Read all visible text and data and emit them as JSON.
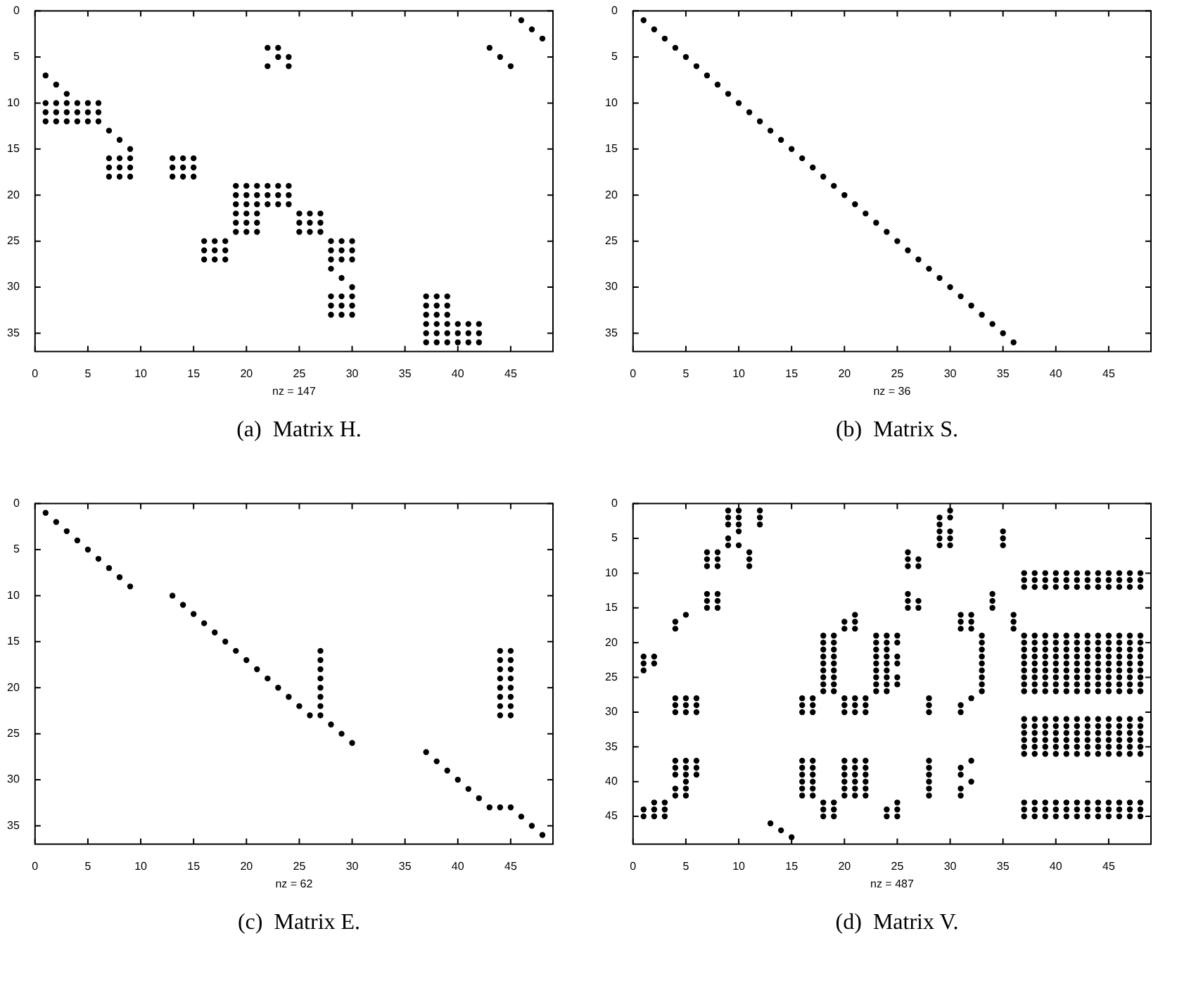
{
  "chart_data": [
    {
      "type": "scatter",
      "title": "(a)  Matrix H.",
      "xlabel": "nz = 147",
      "color": "#000000",
      "marker": "circle",
      "xlim": [
        0,
        49
      ],
      "ylim": [
        37,
        0
      ],
      "xticks": [
        0,
        5,
        10,
        15,
        20,
        25,
        30,
        35,
        40,
        45
      ],
      "yticks": [
        0,
        5,
        10,
        15,
        20,
        25,
        30,
        35
      ],
      "series": [
        {
          "x": [
            1,
            2,
            3
          ],
          "values": [
            7,
            8,
            9
          ]
        },
        {
          "x": [
            1,
            2,
            3,
            4,
            5,
            6,
            1,
            2,
            3,
            4,
            5,
            6,
            1,
            2,
            3,
            4,
            5,
            6
          ],
          "values": [
            10,
            10,
            10,
            10,
            10,
            10,
            11,
            11,
            11,
            11,
            11,
            11,
            12,
            12,
            12,
            12,
            12,
            12
          ]
        },
        {
          "x": [
            7,
            8,
            9
          ],
          "values": [
            13,
            14,
            15
          ]
        },
        {
          "x": [
            7,
            8,
            9,
            7,
            8,
            9,
            7,
            8,
            9
          ],
          "values": [
            16,
            16,
            16,
            17,
            17,
            17,
            18,
            18,
            18
          ]
        },
        {
          "x": [
            13,
            14,
            15,
            13,
            14,
            15,
            13,
            14,
            15
          ],
          "values": [
            16,
            16,
            16,
            17,
            17,
            17,
            18,
            18,
            18
          ]
        },
        {
          "x": [
            19,
            20,
            21,
            22,
            23,
            24,
            19,
            20,
            21,
            22,
            23,
            24,
            19,
            20,
            21,
            22,
            23,
            24
          ],
          "values": [
            19,
            19,
            19,
            19,
            19,
            19,
            20,
            20,
            20,
            20,
            20,
            20,
            21,
            21,
            21,
            21,
            21,
            21
          ]
        },
        {
          "x": [
            19,
            20,
            21,
            19,
            20,
            21,
            19,
            20,
            21
          ],
          "values": [
            22,
            22,
            22,
            23,
            23,
            23,
            24,
            24,
            24
          ]
        },
        {
          "x": [
            25,
            26,
            27,
            25,
            26,
            27,
            25,
            26,
            27
          ],
          "values": [
            22,
            22,
            22,
            23,
            23,
            23,
            24,
            24,
            24
          ]
        },
        {
          "x": [
            16,
            17,
            18,
            16,
            17,
            18,
            16,
            17,
            18
          ],
          "values": [
            25,
            25,
            25,
            26,
            26,
            26,
            27,
            27,
            27
          ]
        },
        {
          "x": [
            28,
            29,
            30,
            28,
            29,
            30,
            28,
            29,
            30
          ],
          "values": [
            25,
            25,
            25,
            26,
            26,
            26,
            27,
            27,
            27
          ]
        },
        {
          "x": [
            28,
            29,
            30
          ],
          "values": [
            28,
            29,
            30
          ]
        },
        {
          "x": [
            28,
            29,
            30,
            28,
            29,
            30,
            28,
            29,
            30
          ],
          "values": [
            31,
            31,
            31,
            32,
            32,
            32,
            33,
            33,
            33
          ]
        },
        {
          "x": [
            37,
            38,
            39,
            37,
            38,
            39,
            37,
            38,
            39
          ],
          "values": [
            31,
            31,
            31,
            32,
            32,
            32,
            33,
            33,
            33
          ]
        },
        {
          "x": [
            37,
            38,
            39,
            40,
            41,
            42,
            37,
            38,
            39,
            40,
            41,
            42,
            37,
            38,
            39,
            40,
            41,
            42
          ],
          "values": [
            34,
            34,
            34,
            34,
            34,
            34,
            35,
            35,
            35,
            35,
            35,
            35,
            36,
            36,
            36,
            36,
            36,
            36
          ]
        },
        {
          "x": [
            22,
            23,
            23,
            24,
            22,
            24
          ],
          "values": [
            4,
            4,
            5,
            5,
            6,
            6
          ]
        },
        {
          "x": [
            43,
            44,
            45
          ],
          "values": [
            4,
            5,
            6
          ]
        },
        {
          "x": [
            46,
            47,
            48
          ],
          "values": [
            1,
            2,
            3
          ]
        }
      ]
    },
    {
      "type": "scatter",
      "title": "(b)  Matrix S.",
      "xlabel": "nz = 36",
      "color": "#000000",
      "marker": "circle",
      "xlim": [
        0,
        49
      ],
      "ylim": [
        37,
        0
      ],
      "xticks": [
        0,
        5,
        10,
        15,
        20,
        25,
        30,
        35,
        40,
        45
      ],
      "yticks": [
        0,
        5,
        10,
        15,
        20,
        25,
        30,
        35
      ],
      "series": [
        {
          "x": [
            1,
            2,
            3,
            4,
            5,
            6,
            7,
            8,
            9,
            10,
            11,
            12,
            13,
            14,
            15,
            16,
            17,
            18,
            19,
            20,
            21,
            22,
            23,
            24,
            25,
            26,
            27,
            28,
            29,
            30,
            31,
            32,
            33,
            34,
            35,
            36
          ],
          "values": [
            1,
            2,
            3,
            4,
            5,
            6,
            7,
            8,
            9,
            10,
            11,
            12,
            13,
            14,
            15,
            16,
            17,
            18,
            19,
            20,
            21,
            22,
            23,
            24,
            25,
            26,
            27,
            28,
            29,
            30,
            31,
            32,
            33,
            34,
            35,
            36
          ]
        }
      ]
    },
    {
      "type": "scatter",
      "title": "(c)  Matrix E.",
      "xlabel": "nz = 62",
      "color": "#000000",
      "marker": "circle",
      "xlim": [
        0,
        49
      ],
      "ylim": [
        37,
        0
      ],
      "xticks": [
        0,
        5,
        10,
        15,
        20,
        25,
        30,
        35,
        40,
        45
      ],
      "yticks": [
        0,
        5,
        10,
        15,
        20,
        25,
        30,
        35
      ],
      "series": [
        {
          "x": [
            1,
            2,
            3,
            4,
            5,
            6,
            7,
            8,
            9
          ],
          "values": [
            1,
            2,
            3,
            4,
            5,
            6,
            7,
            8,
            9
          ]
        },
        {
          "x": [
            13,
            14,
            15,
            16,
            17,
            18,
            19,
            20,
            21,
            22,
            23,
            24,
            25,
            26
          ],
          "values": [
            10,
            11,
            12,
            13,
            14,
            15,
            16,
            17,
            18,
            19,
            20,
            21,
            22,
            23
          ]
        },
        {
          "x": [
            27,
            27,
            27,
            27,
            27,
            27,
            27,
            27
          ],
          "values": [
            16,
            17,
            18,
            19,
            20,
            21,
            22,
            23
          ]
        },
        {
          "x": [
            28,
            29,
            30
          ],
          "values": [
            24,
            25,
            26
          ]
        },
        {
          "x": [
            37,
            38,
            39,
            40,
            41,
            42,
            43
          ],
          "values": [
            27,
            28,
            29,
            30,
            31,
            32,
            33
          ]
        },
        {
          "x": [
            44,
            45,
            46,
            47,
            48
          ],
          "values": [
            33,
            33,
            34,
            35,
            36
          ]
        },
        {
          "x": [
            44,
            44,
            44,
            44,
            44,
            44,
            44,
            44,
            45,
            45,
            45,
            45,
            45,
            45,
            45,
            45
          ],
          "values": [
            16,
            17,
            18,
            19,
            20,
            21,
            22,
            23,
            16,
            17,
            18,
            19,
            20,
            21,
            22,
            23
          ]
        }
      ]
    },
    {
      "type": "scatter",
      "title": "(d)  Matrix V.",
      "xlabel": "nz = 487",
      "color": "#000000",
      "marker": "circle",
      "xlim": [
        0,
        49
      ],
      "ylim": [
        49,
        0
      ],
      "xticks": [
        0,
        5,
        10,
        15,
        20,
        25,
        30,
        35,
        40,
        45
      ],
      "yticks": [
        0,
        5,
        10,
        15,
        20,
        25,
        30,
        35,
        40,
        45
      ],
      "series": [
        {
          "x": [
            9,
            9,
            9,
            9,
            9,
            10,
            10,
            10,
            10,
            10,
            12,
            12,
            12
          ],
          "values": [
            1,
            2,
            3,
            5,
            6,
            1,
            2,
            3,
            4,
            6,
            1,
            2,
            3
          ]
        },
        {
          "x": [
            7,
            8,
            7,
            8,
            7,
            8
          ],
          "values": [
            7,
            7,
            8,
            8,
            9,
            9
          ]
        },
        {
          "x": [
            7,
            8,
            7,
            8,
            7,
            8
          ],
          "values": [
            13,
            13,
            14,
            14,
            15,
            15
          ]
        },
        {
          "x": [
            11,
            11,
            11
          ],
          "values": [
            7,
            8,
            9
          ]
        },
        {
          "x": [
            4,
            4,
            5
          ],
          "values": [
            17,
            18,
            16
          ]
        },
        {
          "x": [
            1,
            1,
            1,
            2,
            2
          ],
          "values": [
            22,
            23,
            24,
            22,
            23
          ]
        },
        {
          "x": [
            4,
            5,
            6,
            4,
            5,
            6,
            4,
            5,
            6
          ],
          "values": [
            28,
            28,
            28,
            29,
            29,
            29,
            30,
            30,
            30
          ]
        },
        {
          "x": [
            4,
            4,
            4,
            4,
            4,
            5,
            5,
            5,
            5,
            5,
            5,
            6,
            6,
            6
          ],
          "values": [
            37,
            38,
            39,
            41,
            42,
            37,
            38,
            39,
            40,
            41,
            42,
            37,
            38,
            39
          ]
        },
        {
          "x": [
            2,
            3,
            1,
            2,
            3,
            1,
            2,
            3
          ],
          "values": [
            43,
            43,
            44,
            44,
            44,
            45,
            45,
            45
          ]
        },
        {
          "x": [
            13,
            14,
            15
          ],
          "values": [
            46,
            47,
            48
          ]
        },
        {
          "x": [
            16,
            17,
            16,
            17,
            16,
            17
          ],
          "values": [
            28,
            28,
            29,
            29,
            30,
            30
          ]
        },
        {
          "x": [
            16,
            17,
            16,
            17,
            16,
            17,
            16,
            17,
            16,
            17,
            16,
            17
          ],
          "values": [
            37,
            37,
            38,
            38,
            39,
            39,
            40,
            40,
            41,
            41,
            42,
            42
          ]
        },
        {
          "x": [
            18,
            19,
            18,
            19,
            18,
            19,
            18,
            19,
            18,
            19,
            18,
            19,
            18,
            19,
            18,
            19,
            18,
            19
          ],
          "values": [
            19,
            19,
            20,
            20,
            21,
            21,
            22,
            22,
            23,
            23,
            24,
            24,
            25,
            25,
            26,
            26,
            27,
            27
          ]
        },
        {
          "x": [
            18,
            19,
            18,
            19,
            18,
            19
          ],
          "values": [
            43,
            43,
            44,
            44,
            45,
            45
          ]
        },
        {
          "x": [
            21,
            20,
            21,
            20,
            21
          ],
          "values": [
            16,
            17,
            17,
            18,
            18
          ]
        },
        {
          "x": [
            20,
            21,
            22,
            20,
            21,
            22,
            20,
            21,
            22
          ],
          "values": [
            28,
            28,
            28,
            29,
            29,
            29,
            30,
            30,
            30
          ]
        },
        {
          "x": [
            20,
            21,
            22,
            20,
            21,
            22,
            20,
            21,
            22,
            20,
            21,
            22,
            20,
            21,
            22,
            20,
            21,
            22
          ],
          "values": [
            37,
            37,
            37,
            38,
            38,
            38,
            39,
            39,
            39,
            40,
            40,
            40,
            41,
            41,
            41,
            42,
            42,
            42
          ]
        },
        {
          "x": [
            23,
            24,
            23,
            24,
            23,
            24,
            23,
            24,
            23,
            24,
            23,
            24,
            23,
            24,
            23,
            24,
            23,
            24
          ],
          "values": [
            19,
            19,
            20,
            20,
            21,
            21,
            22,
            22,
            23,
            23,
            24,
            24,
            25,
            25,
            26,
            26,
            27,
            27
          ]
        },
        {
          "x": [
            25,
            25,
            25,
            25,
            25,
            25
          ],
          "values": [
            19,
            20,
            22,
            23,
            25,
            26
          ]
        },
        {
          "x": [
            24,
            24,
            25,
            25,
            25
          ],
          "values": [
            44,
            45,
            43,
            44,
            45
          ]
        },
        {
          "x": [
            26,
            26,
            26,
            27,
            27
          ],
          "values": [
            7,
            8,
            9,
            8,
            9
          ]
        },
        {
          "x": [
            26,
            26,
            26,
            27,
            27
          ],
          "values": [
            13,
            14,
            15,
            14,
            15
          ]
        },
        {
          "x": [
            28,
            28,
            28,
            28,
            28,
            28,
            28,
            28,
            28
          ],
          "values": [
            28,
            29,
            30,
            37,
            38,
            39,
            40,
            41,
            42
          ]
        },
        {
          "x": [
            29,
            29,
            29,
            29,
            29,
            30,
            30,
            30,
            30,
            30
          ],
          "values": [
            2,
            3,
            4,
            5,
            6,
            1,
            2,
            4,
            5,
            6
          ]
        },
        {
          "x": [
            35,
            35,
            35
          ],
          "values": [
            4,
            5,
            6
          ]
        },
        {
          "x": [
            31,
            32,
            31,
            32,
            31,
            32
          ],
          "values": [
            16,
            16,
            17,
            17,
            18,
            18
          ]
        },
        {
          "x": [
            31,
            31,
            32
          ],
          "values": [
            29,
            30,
            28
          ]
        },
        {
          "x": [
            31,
            31,
            31,
            31,
            32,
            32
          ],
          "values": [
            38,
            39,
            41,
            42,
            37,
            40
          ]
        },
        {
          "x": [
            33,
            33,
            33,
            33,
            33,
            33,
            33,
            33,
            33
          ],
          "values": [
            19,
            20,
            21,
            22,
            23,
            24,
            25,
            26,
            27
          ]
        },
        {
          "x": [
            34,
            34,
            34
          ],
          "values": [
            13,
            14,
            15
          ]
        },
        {
          "x": [
            36,
            36,
            36
          ],
          "values": [
            16,
            17,
            18
          ]
        },
        {
          "x": [
            37,
            38,
            39,
            40,
            41,
            42,
            43,
            44,
            45,
            46,
            47,
            48
          ],
          "values": [
            10,
            10,
            10,
            10,
            10,
            10,
            10,
            10,
            10,
            10,
            10,
            10
          ]
        },
        {
          "x": [
            37,
            38,
            39,
            40,
            41,
            42,
            43,
            44,
            45,
            46,
            47,
            48
          ],
          "values": [
            11,
            11,
            11,
            11,
            11,
            11,
            11,
            11,
            11,
            11,
            11,
            11
          ]
        },
        {
          "x": [
            37,
            38,
            39,
            40,
            41,
            42,
            43,
            44,
            45,
            46,
            47,
            48
          ],
          "values": [
            12,
            12,
            12,
            12,
            12,
            12,
            12,
            12,
            12,
            12,
            12,
            12
          ]
        },
        {
          "x": [
            37,
            38,
            39,
            40,
            41,
            42,
            43,
            44,
            45,
            46,
            47,
            48
          ],
          "values": [
            19,
            19,
            19,
            19,
            19,
            19,
            19,
            19,
            19,
            19,
            19,
            19
          ]
        },
        {
          "x": [
            37,
            38,
            39,
            40,
            41,
            42,
            43,
            44,
            45,
            46,
            47,
            48
          ],
          "values": [
            20,
            20,
            20,
            20,
            20,
            20,
            20,
            20,
            20,
            20,
            20,
            20
          ]
        },
        {
          "x": [
            37,
            38,
            39,
            40,
            41,
            42,
            43,
            44,
            45,
            46,
            47,
            48
          ],
          "values": [
            21,
            21,
            21,
            21,
            21,
            21,
            21,
            21,
            21,
            21,
            21,
            21
          ]
        },
        {
          "x": [
            37,
            38,
            39,
            40,
            41,
            42,
            43,
            44,
            45,
            46,
            47,
            48
          ],
          "values": [
            22,
            22,
            22,
            22,
            22,
            22,
            22,
            22,
            22,
            22,
            22,
            22
          ]
        },
        {
          "x": [
            37,
            38,
            39,
            40,
            41,
            42,
            43,
            44,
            45,
            46,
            47,
            48
          ],
          "values": [
            23,
            23,
            23,
            23,
            23,
            23,
            23,
            23,
            23,
            23,
            23,
            23
          ]
        },
        {
          "x": [
            37,
            38,
            39,
            40,
            41,
            42,
            43,
            44,
            45,
            46,
            47,
            48
          ],
          "values": [
            24,
            24,
            24,
            24,
            24,
            24,
            24,
            24,
            24,
            24,
            24,
            24
          ]
        },
        {
          "x": [
            37,
            38,
            39,
            40,
            41,
            42,
            43,
            44,
            45,
            46,
            47,
            48
          ],
          "values": [
            25,
            25,
            25,
            25,
            25,
            25,
            25,
            25,
            25,
            25,
            25,
            25
          ]
        },
        {
          "x": [
            37,
            38,
            39,
            40,
            41,
            42,
            43,
            44,
            45,
            46,
            47,
            48
          ],
          "values": [
            26,
            26,
            26,
            26,
            26,
            26,
            26,
            26,
            26,
            26,
            26,
            26
          ]
        },
        {
          "x": [
            37,
            38,
            39,
            40,
            41,
            42,
            43,
            44,
            45,
            46,
            47,
            48
          ],
          "values": [
            27,
            27,
            27,
            27,
            27,
            27,
            27,
            27,
            27,
            27,
            27,
            27
          ]
        },
        {
          "x": [
            37,
            38,
            39,
            40,
            41,
            42,
            43,
            44,
            45,
            46,
            47,
            48
          ],
          "values": [
            31,
            31,
            31,
            31,
            31,
            31,
            31,
            31,
            31,
            31,
            31,
            31
          ]
        },
        {
          "x": [
            37,
            38,
            39,
            40,
            41,
            42,
            43,
            44,
            45,
            46,
            47,
            48
          ],
          "values": [
            32,
            32,
            32,
            32,
            32,
            32,
            32,
            32,
            32,
            32,
            32,
            32
          ]
        },
        {
          "x": [
            37,
            38,
            39,
            40,
            41,
            42,
            43,
            44,
            45,
            46,
            47,
            48
          ],
          "values": [
            33,
            33,
            33,
            33,
            33,
            33,
            33,
            33,
            33,
            33,
            33,
            33
          ]
        },
        {
          "x": [
            37,
            38,
            39,
            40,
            41,
            42,
            43,
            44,
            45,
            46,
            47,
            48
          ],
          "values": [
            34,
            34,
            34,
            34,
            34,
            34,
            34,
            34,
            34,
            34,
            34,
            34
          ]
        },
        {
          "x": [
            37,
            38,
            39,
            40,
            41,
            42,
            43,
            44,
            45,
            46,
            47,
            48
          ],
          "values": [
            35,
            35,
            35,
            35,
            35,
            35,
            35,
            35,
            35,
            35,
            35,
            35
          ]
        },
        {
          "x": [
            37,
            38,
            39,
            40,
            41,
            42,
            43,
            44,
            45,
            46,
            47,
            48
          ],
          "values": [
            36,
            36,
            36,
            36,
            36,
            36,
            36,
            36,
            36,
            36,
            36,
            36
          ]
        },
        {
          "x": [
            37,
            38,
            39,
            40,
            41,
            42,
            43,
            44,
            45,
            46,
            47,
            48
          ],
          "values": [
            43,
            43,
            43,
            43,
            43,
            43,
            43,
            43,
            43,
            43,
            43,
            43
          ]
        },
        {
          "x": [
            37,
            38,
            39,
            40,
            41,
            42,
            43,
            44,
            45,
            46,
            47,
            48
          ],
          "values": [
            44,
            44,
            44,
            44,
            44,
            44,
            44,
            44,
            44,
            44,
            44,
            44
          ]
        },
        {
          "x": [
            37,
            38,
            39,
            40,
            41,
            42,
            43,
            44,
            45,
            46,
            47,
            48
          ],
          "values": [
            45,
            45,
            45,
            45,
            45,
            45,
            45,
            45,
            45,
            45,
            45,
            45
          ]
        }
      ]
    }
  ]
}
